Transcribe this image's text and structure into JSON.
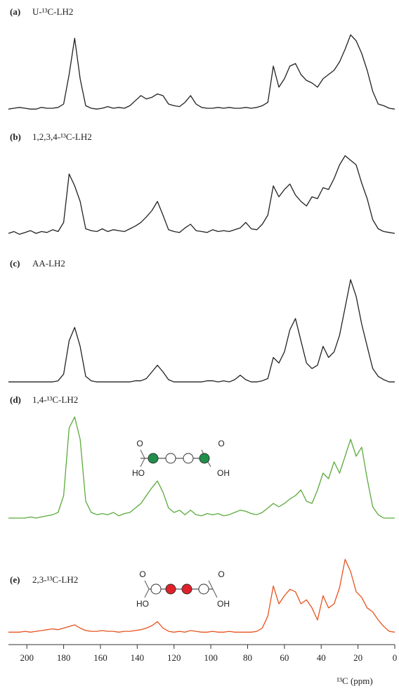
{
  "chart_data": [
    {
      "type": "line",
      "label": "(a)",
      "title": "U-¹³C-LH2",
      "color": "#222222",
      "xlim": [
        210,
        0
      ],
      "ylim": [
        0,
        100
      ],
      "x": [
        210,
        207,
        204,
        201,
        198,
        195,
        192,
        189,
        186,
        183,
        180,
        177,
        174,
        171,
        168,
        165,
        162,
        159,
        156,
        153,
        150,
        147,
        144,
        141,
        138,
        135,
        132,
        129,
        126,
        123,
        120,
        117,
        114,
        111,
        108,
        105,
        102,
        99,
        96,
        93,
        90,
        87,
        84,
        81,
        78,
        75,
        72,
        69,
        66,
        63,
        60,
        57,
        54,
        51,
        48,
        45,
        42,
        39,
        36,
        33,
        30,
        27,
        24,
        21,
        18,
        15,
        12,
        9,
        6,
        3,
        0
      ],
      "values": [
        4,
        5,
        6,
        5,
        4,
        4,
        6,
        5,
        5,
        6,
        10,
        45,
        88,
        40,
        8,
        5,
        4,
        5,
        7,
        5,
        6,
        5,
        8,
        14,
        20,
        16,
        18,
        22,
        20,
        10,
        8,
        7,
        12,
        20,
        10,
        6,
        5,
        5,
        6,
        5,
        6,
        5,
        5,
        6,
        5,
        6,
        8,
        12,
        55,
        30,
        40,
        55,
        58,
        45,
        38,
        35,
        30,
        40,
        45,
        50,
        60,
        75,
        92,
        85,
        70,
        50,
        25,
        10,
        8,
        5,
        4
      ]
    },
    {
      "type": "line",
      "label": "(b)",
      "title": "1,2,3,4-¹³C-LH2",
      "color": "#222222",
      "xlim": [
        210,
        0
      ],
      "ylim": [
        0,
        100
      ],
      "x": [
        210,
        207,
        204,
        201,
        198,
        195,
        192,
        189,
        186,
        183,
        180,
        177,
        174,
        171,
        168,
        165,
        162,
        159,
        156,
        153,
        150,
        147,
        144,
        141,
        138,
        135,
        132,
        129,
        126,
        123,
        120,
        117,
        114,
        111,
        108,
        105,
        102,
        99,
        96,
        93,
        90,
        87,
        84,
        81,
        78,
        75,
        72,
        69,
        66,
        63,
        60,
        57,
        54,
        51,
        48,
        45,
        42,
        39,
        36,
        33,
        30,
        27,
        24,
        21,
        18,
        15,
        12,
        9,
        6,
        3,
        0
      ],
      "values": [
        10,
        12,
        9,
        11,
        13,
        10,
        12,
        11,
        14,
        12,
        22,
        75,
        62,
        45,
        15,
        13,
        12,
        15,
        12,
        14,
        13,
        12,
        15,
        18,
        22,
        28,
        35,
        45,
        30,
        14,
        12,
        11,
        16,
        20,
        13,
        12,
        11,
        14,
        12,
        13,
        12,
        14,
        16,
        22,
        15,
        14,
        20,
        30,
        62,
        50,
        58,
        64,
        52,
        45,
        40,
        50,
        48,
        60,
        58,
        70,
        85,
        95,
        90,
        85,
        65,
        48,
        25,
        15,
        12,
        11,
        10
      ]
    },
    {
      "type": "line",
      "label": "(c)",
      "title": "AA-LH2",
      "color": "#222222",
      "xlim": [
        210,
        0
      ],
      "ylim": [
        0,
        100
      ],
      "x": [
        210,
        207,
        204,
        201,
        198,
        195,
        192,
        189,
        186,
        183,
        180,
        177,
        174,
        171,
        168,
        165,
        162,
        159,
        156,
        153,
        150,
        147,
        144,
        141,
        138,
        135,
        132,
        129,
        126,
        123,
        120,
        117,
        114,
        111,
        108,
        105,
        102,
        99,
        96,
        93,
        90,
        87,
        84,
        81,
        78,
        75,
        72,
        69,
        66,
        63,
        60,
        57,
        54,
        51,
        48,
        45,
        42,
        39,
        36,
        33,
        30,
        27,
        24,
        21,
        18,
        15,
        12,
        9,
        6,
        3,
        0
      ],
      "values": [
        3,
        3,
        3,
        3,
        3,
        3,
        3,
        3,
        3,
        4,
        10,
        40,
        52,
        35,
        8,
        4,
        3,
        3,
        3,
        3,
        3,
        3,
        3,
        4,
        4,
        6,
        12,
        18,
        12,
        5,
        3,
        3,
        3,
        3,
        3,
        3,
        4,
        4,
        3,
        4,
        3,
        5,
        9,
        5,
        3,
        3,
        4,
        6,
        25,
        20,
        30,
        50,
        60,
        40,
        20,
        15,
        18,
        35,
        25,
        30,
        45,
        70,
        95,
        80,
        55,
        35,
        15,
        8,
        5,
        3,
        3
      ]
    },
    {
      "type": "line",
      "label": "(d)",
      "title": "1,4-¹³C-LH2",
      "color": "#5aaa3c",
      "xlim": [
        210,
        0
      ],
      "ylim": [
        0,
        100
      ],
      "annotations": [
        "O",
        "HO",
        "O",
        "OH"
      ],
      "x": [
        210,
        207,
        204,
        201,
        198,
        195,
        192,
        189,
        186,
        183,
        180,
        177,
        174,
        171,
        168,
        165,
        162,
        159,
        156,
        153,
        150,
        147,
        144,
        141,
        138,
        135,
        132,
        129,
        126,
        123,
        120,
        117,
        114,
        111,
        108,
        105,
        102,
        99,
        96,
        93,
        90,
        87,
        84,
        81,
        78,
        75,
        72,
        69,
        66,
        63,
        60,
        57,
        54,
        51,
        48,
        45,
        42,
        39,
        36,
        33,
        30,
        27,
        24,
        21,
        18,
        15,
        12,
        9,
        6,
        3,
        0
      ],
      "values": [
        5,
        5,
        5,
        5,
        6,
        5,
        6,
        7,
        8,
        10,
        25,
        85,
        95,
        75,
        20,
        10,
        8,
        9,
        8,
        10,
        7,
        9,
        10,
        14,
        18,
        25,
        32,
        38,
        28,
        14,
        10,
        12,
        8,
        12,
        8,
        7,
        9,
        8,
        9,
        7,
        8,
        10,
        12,
        11,
        9,
        8,
        10,
        14,
        18,
        15,
        18,
        22,
        25,
        30,
        20,
        18,
        30,
        45,
        40,
        55,
        45,
        60,
        75,
        60,
        68,
        40,
        15,
        8,
        5,
        5,
        5
      ]
    },
    {
      "type": "line",
      "label": "(e)",
      "title": "2,3-¹³C-LH2",
      "color": "#e8531e",
      "xlim": [
        210,
        0
      ],
      "ylim": [
        0,
        100
      ],
      "annotations": [
        "O",
        "HO",
        "O",
        "OH"
      ],
      "xlabel": "¹³C (ppm)",
      "xticks": [
        200,
        180,
        160,
        140,
        120,
        100,
        80,
        60,
        40,
        20,
        0
      ],
      "x": [
        210,
        207,
        204,
        201,
        198,
        195,
        192,
        189,
        186,
        183,
        180,
        177,
        174,
        171,
        168,
        165,
        162,
        159,
        156,
        153,
        150,
        147,
        144,
        141,
        138,
        135,
        132,
        129,
        126,
        123,
        120,
        117,
        114,
        111,
        108,
        105,
        102,
        99,
        96,
        93,
        90,
        87,
        84,
        81,
        78,
        75,
        72,
        69,
        66,
        63,
        60,
        57,
        54,
        51,
        48,
        45,
        42,
        39,
        36,
        33,
        30,
        27,
        24,
        21,
        18,
        15,
        12,
        9,
        6,
        3,
        0
      ],
      "values": [
        5,
        5,
        5,
        6,
        5,
        6,
        7,
        8,
        9,
        8,
        10,
        12,
        14,
        10,
        7,
        6,
        6,
        7,
        6,
        6,
        5,
        6,
        6,
        7,
        8,
        10,
        13,
        18,
        10,
        6,
        5,
        6,
        5,
        7,
        6,
        5,
        5,
        6,
        5,
        5,
        6,
        5,
        5,
        5,
        5,
        6,
        10,
        25,
        62,
        40,
        50,
        58,
        55,
        40,
        45,
        35,
        20,
        50,
        35,
        40,
        60,
        95,
        80,
        55,
        48,
        35,
        30,
        20,
        12,
        6,
        5
      ]
    }
  ]
}
